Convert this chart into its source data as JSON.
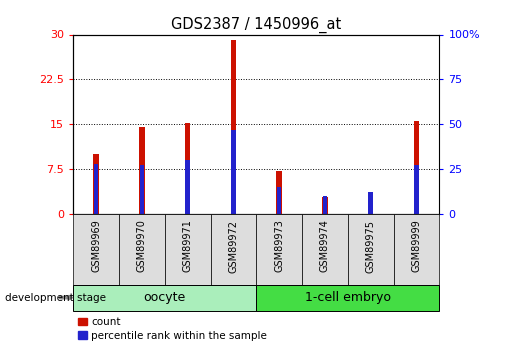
{
  "title": "GDS2387 / 1450996_at",
  "samples": [
    "GSM89969",
    "GSM89970",
    "GSM89971",
    "GSM89972",
    "GSM89973",
    "GSM89974",
    "GSM89975",
    "GSM89999"
  ],
  "count_values": [
    10.0,
    14.5,
    15.2,
    29.0,
    7.2,
    2.8,
    2.5,
    15.5
  ],
  "percentile_values": [
    28,
    27,
    30,
    47,
    15,
    10,
    12,
    27
  ],
  "left_ylim": [
    0,
    30
  ],
  "right_ylim": [
    0,
    100
  ],
  "left_yticks": [
    0,
    7.5,
    15,
    22.5,
    30
  ],
  "right_yticks": [
    0,
    25,
    50,
    75,
    100
  ],
  "left_yticklabels": [
    "0",
    "7.5",
    "15",
    "22.5",
    "30"
  ],
  "right_yticklabels": [
    "0",
    "25",
    "50",
    "75",
    "100%"
  ],
  "bar_color_red": "#cc1100",
  "bar_color_blue": "#2222cc",
  "grid_color": "#000000",
  "bg_color": "#ffffff",
  "oocyte_color": "#aaeebb",
  "embryo_color": "#44dd44",
  "group_label_oocyte": "oocyte",
  "group_label_1cell": "1-cell embryo",
  "legend_count": "count",
  "legend_percentile": "percentile rank within the sample",
  "dev_stage_label": "development stage"
}
